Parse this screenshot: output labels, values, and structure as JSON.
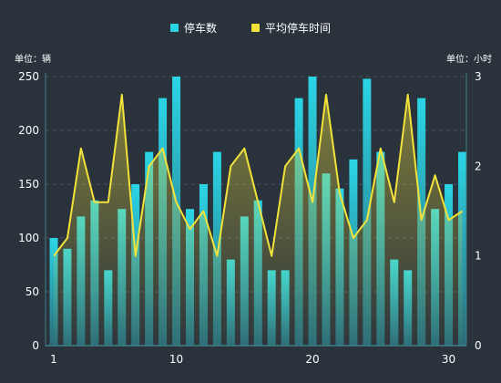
{
  "legend": {
    "bar_label": "停车数",
    "line_label": "平均停车时间",
    "bar_color": "#2bd5e6",
    "line_color": "#f2e23a"
  },
  "units": {
    "left": "单位：辆",
    "right": "单位：小时"
  },
  "chart_data": {
    "type": "bar",
    "x": [
      1,
      2,
      3,
      4,
      5,
      6,
      7,
      8,
      9,
      10,
      11,
      12,
      13,
      14,
      15,
      16,
      17,
      18,
      19,
      20,
      21,
      22,
      23,
      24,
      25,
      26,
      27,
      28,
      29,
      30,
      31
    ],
    "x_ticks": [
      "1",
      "10",
      "20",
      "30"
    ],
    "y_left_ticks": [
      "0",
      "50",
      "100",
      "150",
      "200",
      "250"
    ],
    "y_right_ticks": [
      "0",
      "1",
      "2",
      "3"
    ],
    "ylim_left": [
      0,
      250
    ],
    "ylim_right": [
      0,
      3
    ],
    "series": [
      {
        "name": "停车数",
        "type": "bar",
        "axis": "left",
        "values": [
          100,
          90,
          120,
          135,
          70,
          127,
          150,
          180,
          230,
          250,
          127,
          150,
          180,
          80,
          120,
          135,
          70,
          70,
          230,
          250,
          160,
          146,
          173,
          248,
          180,
          80,
          70,
          230,
          127,
          150,
          180
        ]
      },
      {
        "name": "平均停车时间",
        "type": "line",
        "axis": "right",
        "values": [
          1.0,
          1.2,
          2.2,
          1.6,
          1.6,
          2.8,
          1.0,
          2.0,
          2.2,
          1.6,
          1.3,
          1.5,
          1.0,
          2.0,
          2.2,
          1.6,
          1.0,
          2.0,
          2.2,
          1.6,
          2.8,
          1.7,
          1.2,
          1.4,
          2.2,
          1.6,
          2.8,
          1.4,
          1.9,
          1.4,
          1.5
        ]
      }
    ],
    "grid": true,
    "legend_position": "top-center"
  }
}
